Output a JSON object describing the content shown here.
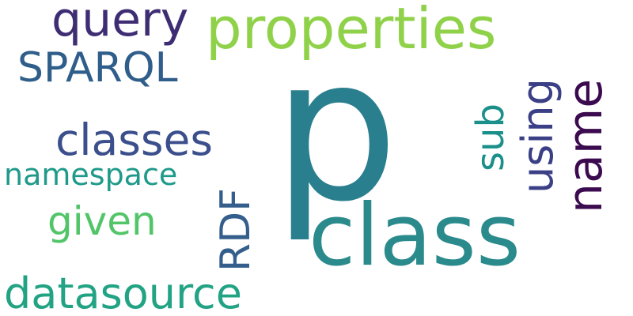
{
  "words": {
    "p": {
      "text": "p",
      "color": "#2a7f8f"
    },
    "class": {
      "text": "class",
      "color": "#2a8a8c"
    },
    "properties": {
      "text": "properties",
      "color": "#8fd24a"
    },
    "query": {
      "text": "query",
      "color": "#3f2d73"
    },
    "sparql": {
      "text": "SPARQL",
      "color": "#2f5e8a"
    },
    "classes": {
      "text": "classes",
      "color": "#3b4f8c"
    },
    "namespace": {
      "text": "namespace",
      "color": "#1f9a8a"
    },
    "given": {
      "text": "given",
      "color": "#52c568"
    },
    "datasource": {
      "text": "datasource",
      "color": "#22a384"
    },
    "rdf": {
      "text": "RDF",
      "color": "#345f8d"
    },
    "sub": {
      "text": "sub",
      "color": "#1b8f8a"
    },
    "using": {
      "text": "using",
      "color": "#3a3f86"
    },
    "name": {
      "text": "name",
      "color": "#3b0a4f"
    }
  }
}
